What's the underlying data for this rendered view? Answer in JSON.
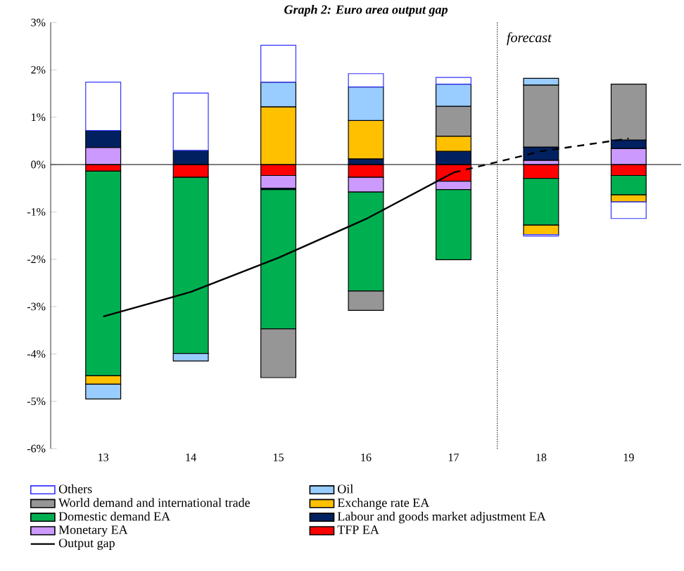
{
  "chart_data": {
    "type": "bar",
    "title": "Graph 2: Euro area output gap",
    "stacked": true,
    "x": [
      13,
      14,
      15,
      16,
      17,
      18,
      19
    ],
    "xlim": [
      12.4,
      19.6
    ],
    "xticks": [
      13,
      14,
      15,
      16,
      17,
      18,
      19
    ],
    "ylim": [
      -6,
      3
    ],
    "yticks": [
      {
        "value": -6,
        "label": "-6%"
      },
      {
        "value": -5,
        "label": "-5%"
      },
      {
        "value": -4,
        "label": "-4%"
      },
      {
        "value": -3,
        "label": "-3%"
      },
      {
        "value": -2,
        "label": "-2%"
      },
      {
        "value": -1,
        "label": "-1%"
      },
      {
        "value": 0,
        "label": "0%"
      },
      {
        "value": 1,
        "label": "1%"
      },
      {
        "value": 2,
        "label": "2%"
      },
      {
        "value": 3,
        "label": "3%"
      }
    ],
    "legend": "bottom",
    "ref_lines": [
      {
        "axis": "x",
        "value": 17.5,
        "label": "forecast",
        "line_style": "dotted",
        "color": "#000000"
      }
    ],
    "series": [
      {
        "name": "TFP EA",
        "color": "#ff0000",
        "values": [
          -0.14,
          -0.27,
          -0.23,
          -0.27,
          -0.35,
          -0.29,
          -0.23
        ]
      },
      {
        "name": "Monetary EA",
        "color": "#cc99ff",
        "values": [
          0.36,
          null,
          -0.27,
          -0.31,
          -0.18,
          0.09,
          0.34
        ]
      },
      {
        "name": "Labour and goods market adjustment EA",
        "color": "#002060",
        "values": [
          0.36,
          0.3,
          -0.03,
          0.12,
          0.28,
          0.28,
          0.18
        ]
      },
      {
        "name": "Domestic demand EA",
        "color": "#00b050",
        "values": [
          -4.32,
          -3.72,
          -2.94,
          -2.09,
          -1.48,
          -0.99,
          -0.41
        ]
      },
      {
        "name": "Exchange rate EA",
        "color": "#ffc000",
        "values": [
          -0.18,
          null,
          1.22,
          0.81,
          0.32,
          -0.2,
          -0.15
        ]
      },
      {
        "name": "World demand and international trade",
        "color": "#969696",
        "values": [
          null,
          null,
          -1.03,
          -0.41,
          0.63,
          1.31,
          1.18
        ]
      },
      {
        "name": "Oil",
        "color": "#99ccff",
        "values": [
          -0.31,
          -0.16,
          0.52,
          0.71,
          0.47,
          0.14,
          null
        ]
      },
      {
        "name": "Others",
        "color": "#ffffff",
        "values": [
          1.02,
          1.21,
          0.78,
          0.28,
          0.14,
          -0.03,
          -0.35
        ]
      },
      {
        "name": "Output gap",
        "type": "line",
        "line_style": "solid",
        "color": "#000000",
        "x": [
          13,
          14,
          15,
          16,
          17
        ],
        "values": [
          -3.21,
          -2.69,
          -1.97,
          -1.15,
          -0.17
        ]
      },
      {
        "type": "line",
        "line_style": "dashed",
        "color": "#000000",
        "x": [
          17,
          18,
          19
        ],
        "values": [
          -0.17,
          0.28,
          0.55
        ]
      }
    ]
  }
}
